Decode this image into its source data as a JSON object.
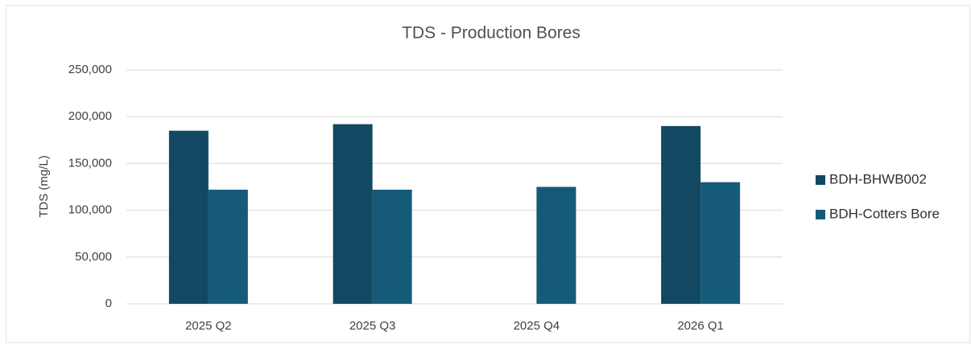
{
  "chart_data": {
    "type": "bar",
    "title": "TDS - Production Bores",
    "y_label": "TDS (mg/L)",
    "categories": [
      "2025 Q2",
      "2025 Q3",
      "2025 Q4",
      "2026 Q1"
    ],
    "series": [
      {
        "name": "BDH-BHWB002",
        "color": "#124862",
        "values": [
          185000,
          192000,
          null,
          190000
        ]
      },
      {
        "name": "BDH-Cotters Bore",
        "color": "#165a7a",
        "values": [
          122000,
          122000,
          125000,
          130000
        ]
      }
    ],
    "ylim": [
      0,
      250000
    ],
    "yticks": [
      0,
      {
        "value": 50000,
        "label": "50,000"
      },
      {
        "value": 100000,
        "label": "100,000"
      },
      {
        "value": 150000,
        "label": "150,000"
      },
      {
        "value": 200000,
        "label": "200,000"
      },
      {
        "value": 250000,
        "label": "250,000"
      }
    ],
    "grid": true,
    "legend": "right"
  }
}
